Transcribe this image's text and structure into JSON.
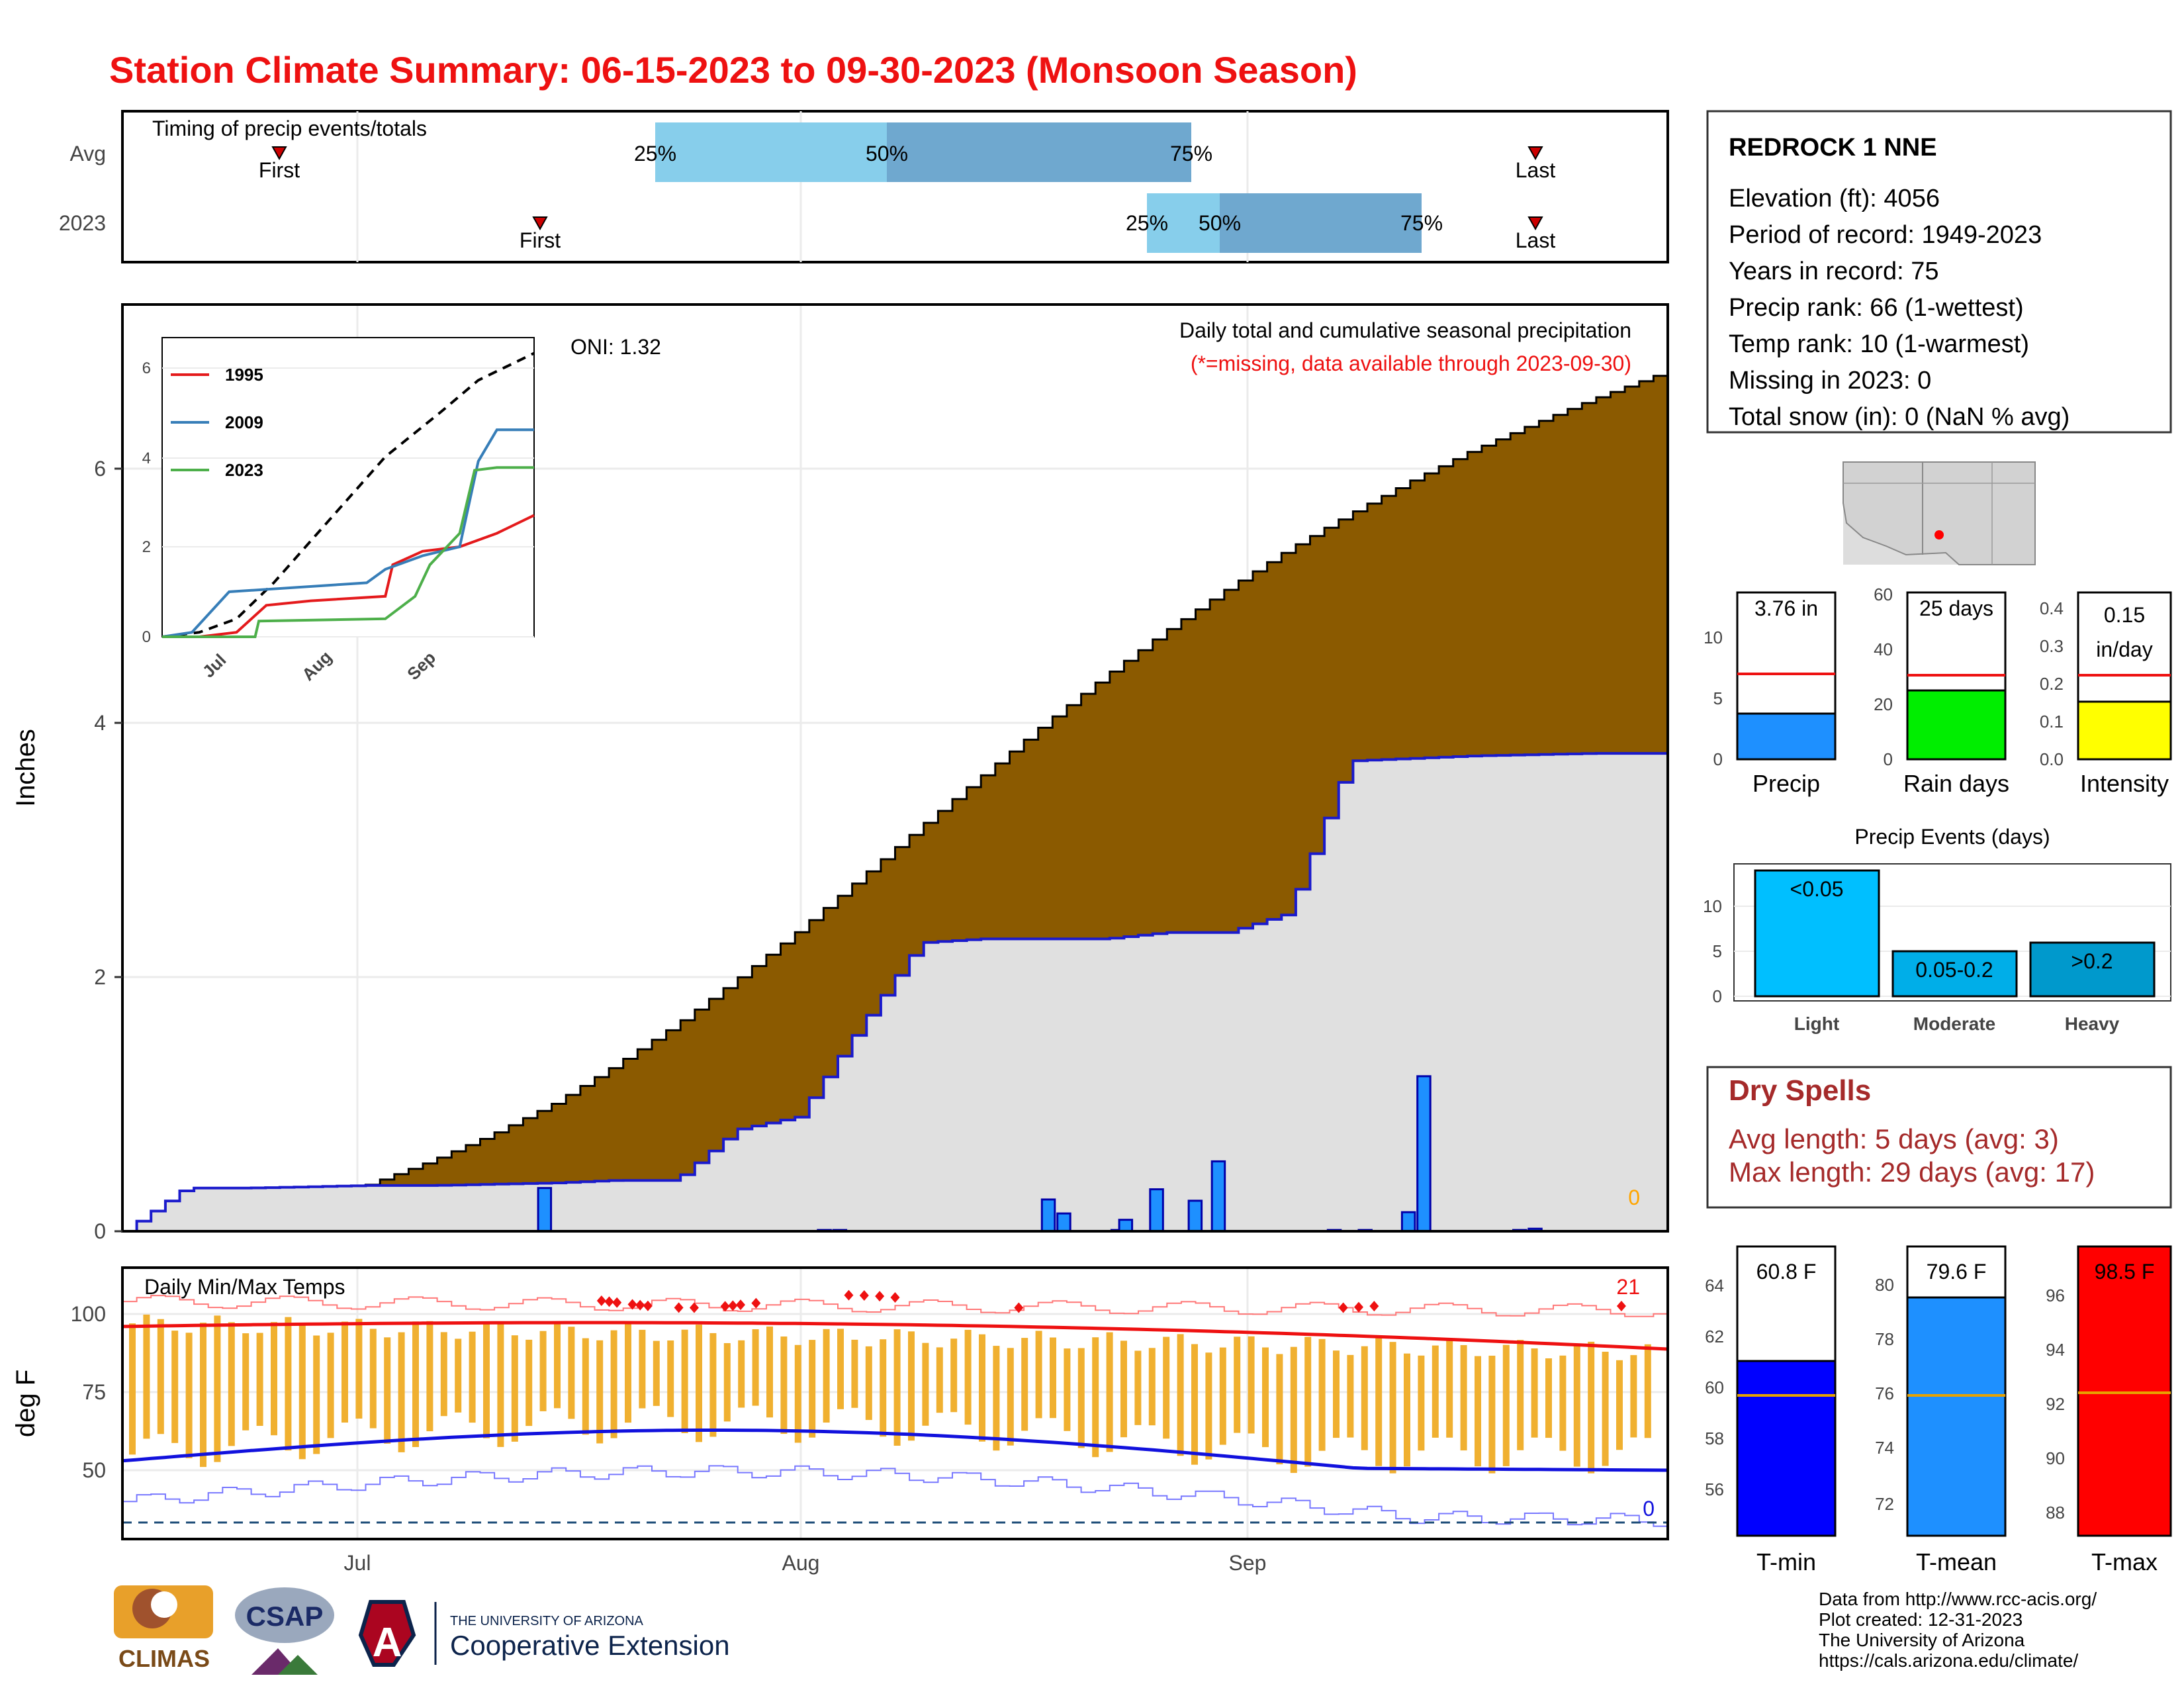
{
  "title": "Station Climate Summary: 06-15-2023 to 09-30-2023 (Monsoon Season)",
  "colors": {
    "title": "#ee1111",
    "avg_precip": "#8b5a00",
    "obs_precip": "#e0e0e0",
    "daily_bar": "#1e90ff",
    "dry": "#a52a2a"
  },
  "timing": {
    "panel_title": "Timing of precip events/totals",
    "rows": [
      {
        "label": "Avg",
        "first": "First",
        "last": "Last",
        "q25": "25%",
        "q50": "50%",
        "q75": "75%"
      },
      {
        "label": "2023",
        "first": "First",
        "last": "Last",
        "q25": "25%",
        "q50": "50%",
        "q75": "75%"
      }
    ]
  },
  "x_ticks": [
    "Jul",
    "Aug",
    "Sep"
  ],
  "precip_panel": {
    "ylabel": "Inches",
    "yticks": [
      "0",
      "2",
      "4",
      "6"
    ],
    "title": "Daily total and cumulative seasonal precipitation",
    "subtitle": "(*=missing, data available through 2023-09-30)",
    "oni": "ONI: 1.32",
    "missing_count": "0"
  },
  "inset": {
    "legend": [
      "1995",
      "2009",
      "2023"
    ],
    "yticks": [
      "0",
      "2",
      "4",
      "6"
    ],
    "xticks": [
      "Jul",
      "Aug",
      "Sep"
    ]
  },
  "temp_panel": {
    "ylabel": "deg F",
    "title": "Daily Min/Max Temps",
    "yticks": [
      "100",
      "75",
      "50"
    ],
    "above_count": "21",
    "below_count": "0"
  },
  "station": {
    "name": "REDROCK 1 NNE",
    "lines": [
      "Elevation (ft): 4056",
      "Period of record: 1949-2023",
      "Years in record: 75",
      "Precip rank: 66 (1-wettest)",
      "Temp rank: 10 (1-warmest)",
      "Missing in 2023: 0",
      "Total snow (in): 0 (NaN % avg)"
    ]
  },
  "mini_bars": [
    {
      "label": "Precip",
      "value_text": "3.76 in",
      "yticks": [
        "0",
        "5",
        "10"
      ]
    },
    {
      "label": "Rain days",
      "value_text": "25 days",
      "yticks": [
        "0",
        "20",
        "40",
        "60"
      ]
    },
    {
      "label": "Intensity",
      "value_text1": "0.15",
      "value_text2": "in/day",
      "yticks": [
        "0.0",
        "0.1",
        "0.2",
        "0.3",
        "0.4"
      ]
    }
  ],
  "events": {
    "title": "Precip Events (days)",
    "yticks": [
      "0",
      "5",
      "10"
    ],
    "cats": [
      "Light",
      "Moderate",
      "Heavy"
    ],
    "bar_labels": [
      "<0.05",
      "0.05-0.2",
      ">0.2"
    ]
  },
  "dry_spells": {
    "title": "Dry Spells",
    "avg": "Avg length: 5 days (avg: 3)",
    "max": "Max length: 29 days (avg: 17)"
  },
  "temp_bars": [
    {
      "label": "T-min",
      "value_text": "60.8 F",
      "yticks": [
        "56",
        "58",
        "60",
        "62",
        "64"
      ]
    },
    {
      "label": "T-mean",
      "value_text": "79.6 F",
      "yticks": [
        "72",
        "74",
        "76",
        "78",
        "80"
      ]
    },
    {
      "label": "T-max",
      "value_text": "98.5 F",
      "yticks": [
        "88",
        "90",
        "92",
        "94",
        "96"
      ]
    }
  ],
  "footer": {
    "lines": [
      "Data from http://www.rcc-acis.org/",
      "Plot created: 12-31-2023",
      "The University of Arizona",
      "https://cals.arizona.edu/climate/"
    ],
    "logos": [
      "CLIMAS",
      "CSAP",
      "THE UNIVERSITY OF ARIZONA",
      "Cooperative Extension"
    ]
  },
  "chart_data": {
    "type": "area",
    "title": "Daily total and cumulative seasonal precipitation",
    "ylabel": "Inches",
    "ylim": [
      0,
      7.3
    ],
    "start_date": "2023-06-15",
    "days": 108,
    "series": [
      {
        "name": "Average cumulative",
        "values": [
          0,
          0.04,
          0.13,
          0.24,
          0.37,
          0.55,
          0.76,
          1.0,
          1.3,
          1.62,
          1.98,
          2.36,
          2.77,
          3.18,
          3.58,
          3.98,
          4.36,
          4.72,
          5.05,
          5.36,
          5.64,
          5.9,
          6.14,
          6.35,
          6.55,
          6.73
        ]
      },
      {
        "name": "2023 cumulative",
        "values": [
          0,
          0.34,
          0.34,
          0.35,
          0.36,
          0.36,
          0.37,
          0.38,
          0.4,
          0.4,
          0.8,
          0.9,
          1.6,
          2.27,
          2.3,
          2.3,
          2.3,
          2.35,
          2.35,
          2.5,
          3.7,
          3.72,
          3.74,
          3.75,
          3.76,
          3.76
        ]
      },
      {
        "name": "2023 daily",
        "values": [
          0,
          0.34,
          0.01,
          0.01,
          0.0,
          0.0,
          0.01,
          0.0,
          0.0,
          0.0,
          0.25,
          0.14,
          0.09,
          0.33,
          0.24,
          0.55,
          0.01,
          0.01,
          0.15,
          1.22,
          0.01,
          0.02
        ]
      }
    ]
  }
}
